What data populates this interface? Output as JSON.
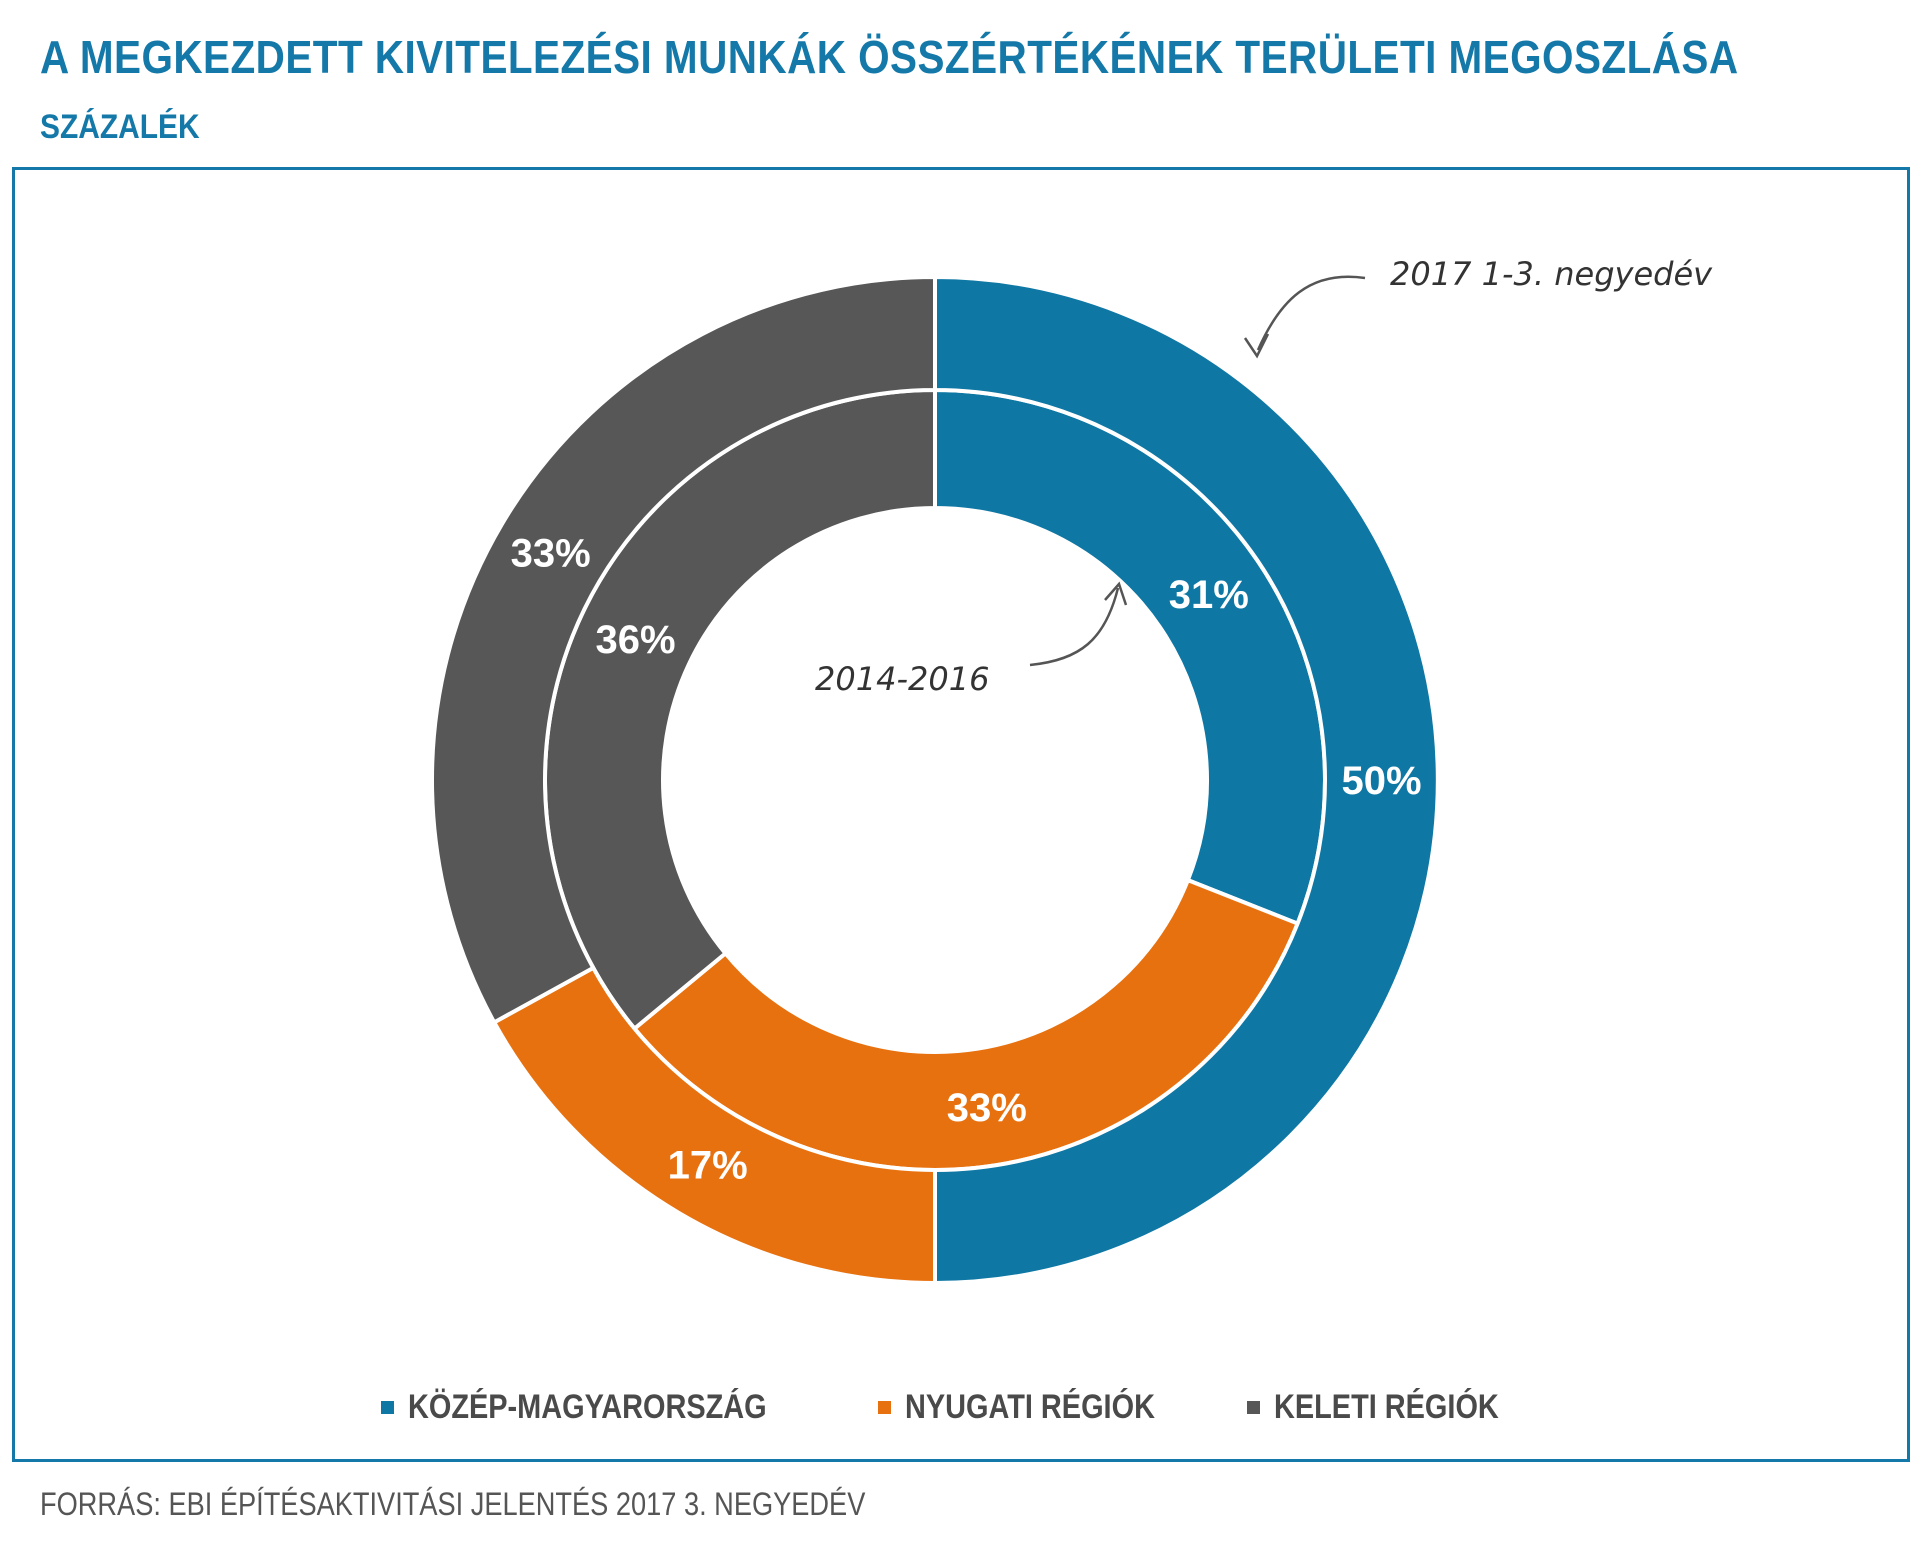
{
  "header": {
    "title": "A MEGKEZDETT KIVITELEZÉSI MUNKÁK ÖSSZÉRTÉKÉNEK TERÜLETI MEGOSZLÁSA",
    "subtitle": "SZÁZALÉK"
  },
  "chart_data": {
    "type": "pie",
    "series": [
      {
        "name": "2014-2016",
        "ring": "inner",
        "values": [
          31,
          33,
          36
        ],
        "labels": [
          "31%",
          "33%",
          "36%"
        ]
      },
      {
        "name": "2017 1-3. negyedév",
        "ring": "outer",
        "values": [
          50,
          17,
          33
        ],
        "labels": [
          "50%",
          "17%",
          "33%"
        ]
      }
    ],
    "categories": [
      "KÖZÉP-MAGYARORSZÁG",
      "NYUGATI RÉGIÓK",
      "KELETI RÉGIÓK"
    ],
    "colors": [
      "#0e77a4",
      "#e8710f",
      "#575757"
    ],
    "annotations": [
      "2017 1-3. negyedév",
      "2014-2016"
    ],
    "legend_position": "bottom"
  },
  "legend": {
    "items": [
      {
        "label": "KÖZÉP-MAGYARORSZÁG",
        "color": "#0e77a4"
      },
      {
        "label": "NYUGATI RÉGIÓK",
        "color": "#e8710f"
      },
      {
        "label": "KELETI RÉGIÓK",
        "color": "#575757"
      }
    ]
  },
  "source": "FORRÁS: EBI ÉPÍTÉSAKTIVITÁSI JELENTÉS 2017 3. NEGYEDÉV"
}
